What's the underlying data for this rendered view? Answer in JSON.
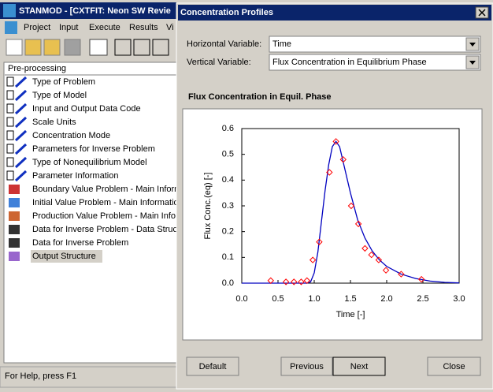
{
  "main_window": {
    "title": "STANMOD - [CXTFIT: Neon SW Revie",
    "menu": [
      "Project",
      "Input",
      "Execute",
      "Results",
      "Vi"
    ],
    "tree_header": "Pre-processing",
    "tree_items": [
      "Type of Problem",
      "Type of Model",
      "Input and Output Data Code",
      "Scale Units",
      "Concentration Mode",
      "Parameters for Inverse Problem",
      "Type of Nonequilibrium Model",
      "Parameter Information",
      "Boundary Value Problem - Main Inform",
      "Initial Value Problem - Main Informatio",
      "Production Value Problem - Main Infor",
      "Data for Inverse Problem - Data Struc",
      "Data for Inverse Problem",
      "Output Structure"
    ],
    "status": "For Help, press F1"
  },
  "dialog": {
    "title": "Concentration Profiles",
    "horizontal_label": "Horizontal Variable:",
    "horizontal_value": "Time",
    "vertical_label": "Vertical Variable:",
    "vertical_value": "Flux Concentration in Equilibrium Phase",
    "buttons": [
      {
        "label": "Default",
        "enabled": true
      },
      {
        "label": "Previous",
        "enabled": false
      },
      {
        "label": "Next",
        "enabled": true
      },
      {
        "label": "Close",
        "enabled": true
      }
    ]
  },
  "chart_data": {
    "type": "line",
    "title": "Flux Concentration in Equil. Phase",
    "x_label": "Time [-]",
    "y_label": "Flux Conc.(eq) [-]",
    "xlim": [
      0,
      3
    ],
    "ylim": [
      0,
      0.6
    ],
    "xticks": [
      {
        "value": 0,
        "label": "0.0"
      },
      0.5,
      {
        "value": 1,
        "label": "1.0"
      },
      1.5,
      {
        "value": 2,
        "label": "2.0"
      },
      2.5,
      {
        "value": 3,
        "label": "3.0"
      }
    ],
    "yticks": [
      {
        "value": 0,
        "label": "0.0"
      },
      0.1,
      0.2,
      0.3,
      0.4,
      0.5,
      0.6
    ],
    "series": [
      {
        "color": "#0000c0",
        "line": true,
        "marker": "none",
        "x": [
          0,
          0.9,
          0.95,
          1.0,
          1.05,
          1.1,
          1.15,
          1.2,
          1.25,
          1.3,
          1.35,
          1.4,
          1.5,
          1.6,
          1.7,
          1.8,
          1.9,
          2.0,
          2.2,
          2.4,
          2.6,
          2.8,
          3.0
        ],
        "values": [
          0,
          0,
          0.005,
          0.04,
          0.12,
          0.24,
          0.36,
          0.46,
          0.53,
          0.55,
          0.53,
          0.47,
          0.35,
          0.245,
          0.175,
          0.125,
          0.09,
          0.065,
          0.035,
          0.018,
          0.008,
          0.003,
          0.001
        ]
      },
      {
        "color": "#ff0000",
        "line": false,
        "marker": "diamond",
        "x": [
          0.4,
          0.61,
          0.72,
          0.82,
          0.9,
          0.98,
          1.07,
          1.21,
          1.3,
          1.4,
          1.51,
          1.61,
          1.7,
          1.79,
          1.89,
          1.99,
          2.2,
          2.48
        ],
        "values": [
          0.01,
          0.005,
          0.005,
          0.005,
          0.01,
          0.09,
          0.16,
          0.43,
          0.55,
          0.48,
          0.3,
          0.23,
          0.135,
          0.11,
          0.09,
          0.05,
          0.035,
          0.015
        ]
      }
    ]
  }
}
